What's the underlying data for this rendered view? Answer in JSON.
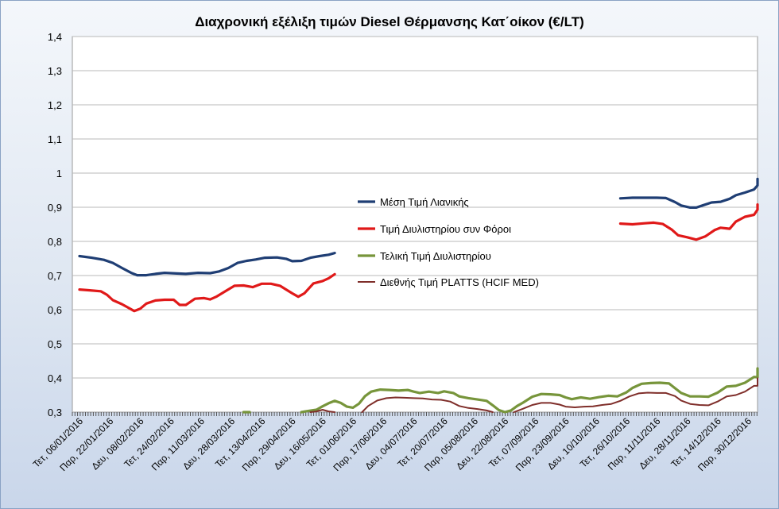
{
  "chart_data": {
    "type": "line",
    "title": "Διαχρονική εξέλιξη τιμών Diesel Θέρμανσης Κατ΄οίκον (€/LT)",
    "xlabel": "",
    "ylabel": "",
    "ylim": [
      0.3,
      1.4
    ],
    "yticks": [
      "0,3",
      "0,4",
      "0,5",
      "0,6",
      "0,7",
      "0,8",
      "0,9",
      "1",
      "1,1",
      "1,2",
      "1,3",
      "1,4"
    ],
    "grid": true,
    "legend_position": "center",
    "xtick_labels": [
      "Τετ, 06/01/2016",
      "Παρ, 22/01/2016",
      "Δευ, 08/02/2016",
      "Τετ, 24/02/2016",
      "Παρ, 11/03/2016",
      "Δευ, 28/03/2016",
      "Τετ, 13/04/2016",
      "Παρ, 29/04/2016",
      "Δευ, 16/05/2016",
      "Τετ, 01/06/2016",
      "Παρ, 17/06/2016",
      "Δευ, 04/07/2016",
      "Τετ, 20/07/2016",
      "Παρ, 05/08/2016",
      "Δευ, 22/08/2016",
      "Τετ, 07/09/2016",
      "Παρ, 23/09/2016",
      "Δευ, 10/10/2016",
      "Τετ, 26/10/2016",
      "Παρ, 11/11/2016",
      "Δευ, 28/11/2016",
      "Τετ, 14/12/2016",
      "Παρ, 30/12/2016"
    ],
    "x_index_range": [
      0,
      22
    ],
    "series": [
      {
        "name": "Μέση Τιμή Λιανικής",
        "color": "#1f3e74",
        "segments": [
          [
            [
              0,
              0.757
            ],
            [
              0.4,
              0.752
            ],
            [
              0.8,
              0.746
            ],
            [
              1.1,
              0.737
            ],
            [
              1.4,
              0.722
            ],
            [
              1.7,
              0.708
            ],
            [
              1.9,
              0.701
            ],
            [
              2.2,
              0.701
            ],
            [
              2.5,
              0.705
            ],
            [
              2.8,
              0.708
            ],
            [
              3.2,
              0.706
            ],
            [
              3.5,
              0.705
            ],
            [
              3.9,
              0.708
            ],
            [
              4.3,
              0.707
            ],
            [
              4.6,
              0.712
            ],
            [
              4.9,
              0.722
            ],
            [
              5.2,
              0.737
            ],
            [
              5.5,
              0.743
            ],
            [
              5.8,
              0.747
            ],
            [
              6.1,
              0.752
            ],
            [
              6.5,
              0.753
            ],
            [
              6.8,
              0.749
            ],
            [
              7.0,
              0.742
            ],
            [
              7.3,
              0.743
            ],
            [
              7.6,
              0.752
            ],
            [
              7.9,
              0.757
            ],
            [
              8.2,
              0.761
            ],
            [
              8.4,
              0.766
            ]
          ],
          [
            [
              17.8,
              0.926
            ],
            [
              18.2,
              0.928
            ],
            [
              18.6,
              0.928
            ],
            [
              19.0,
              0.928
            ],
            [
              19.3,
              0.927
            ],
            [
              19.6,
              0.915
            ],
            [
              19.8,
              0.905
            ],
            [
              20.1,
              0.899
            ],
            [
              20.3,
              0.899
            ],
            [
              20.5,
              0.905
            ],
            [
              20.8,
              0.914
            ],
            [
              21.1,
              0.916
            ],
            [
              21.4,
              0.925
            ],
            [
              21.6,
              0.935
            ],
            [
              21.9,
              0.943
            ],
            [
              22.2,
              0.952
            ],
            [
              22.5,
              0.964
            ],
            [
              22.8,
              0.972
            ],
            [
              23.1,
              0.977
            ],
            [
              23.4,
              0.983
            ]
          ]
        ]
      },
      {
        "name": "Τιμή Διυλιστηρίου συν Φόροι",
        "color": "#e01919",
        "segments": [
          [
            [
              0,
              0.659
            ],
            [
              0.3,
              0.657
            ],
            [
              0.7,
              0.654
            ],
            [
              0.9,
              0.644
            ],
            [
              1.1,
              0.628
            ],
            [
              1.4,
              0.616
            ],
            [
              1.6,
              0.606
            ],
            [
              1.8,
              0.596
            ],
            [
              2.0,
              0.603
            ],
            [
              2.2,
              0.618
            ],
            [
              2.5,
              0.627
            ],
            [
              2.8,
              0.629
            ],
            [
              3.1,
              0.629
            ],
            [
              3.3,
              0.614
            ],
            [
              3.5,
              0.614
            ],
            [
              3.8,
              0.632
            ],
            [
              4.1,
              0.634
            ],
            [
              4.3,
              0.63
            ],
            [
              4.5,
              0.638
            ],
            [
              4.8,
              0.654
            ],
            [
              5.1,
              0.67
            ],
            [
              5.4,
              0.671
            ],
            [
              5.7,
              0.666
            ],
            [
              6.0,
              0.676
            ],
            [
              6.3,
              0.676
            ],
            [
              6.6,
              0.67
            ],
            [
              6.8,
              0.659
            ],
            [
              7.0,
              0.648
            ],
            [
              7.2,
              0.638
            ],
            [
              7.4,
              0.648
            ],
            [
              7.7,
              0.677
            ],
            [
              8.0,
              0.684
            ],
            [
              8.2,
              0.692
            ],
            [
              8.4,
              0.704
            ]
          ],
          [
            [
              17.8,
              0.852
            ],
            [
              18.2,
              0.85
            ],
            [
              18.6,
              0.853
            ],
            [
              18.9,
              0.855
            ],
            [
              19.2,
              0.851
            ],
            [
              19.5,
              0.834
            ],
            [
              19.7,
              0.818
            ],
            [
              20.0,
              0.812
            ],
            [
              20.3,
              0.805
            ],
            [
              20.6,
              0.815
            ],
            [
              20.9,
              0.833
            ],
            [
              21.1,
              0.84
            ],
            [
              21.4,
              0.837
            ],
            [
              21.6,
              0.858
            ],
            [
              21.9,
              0.872
            ],
            [
              22.2,
              0.878
            ],
            [
              22.5,
              0.893
            ],
            [
              22.8,
              0.899
            ],
            [
              23.1,
              0.903
            ],
            [
              23.4,
              0.908
            ]
          ]
        ]
      },
      {
        "name": "Τελική Τιμή Διυλιστηρίου",
        "color": "#77953b",
        "segments": [
          [
            [
              5.4,
              0.298
            ],
            [
              5.5,
              0.3
            ],
            [
              5.6,
              0.298
            ]
          ],
          [
            [
              7.3,
              0.298
            ],
            [
              7.5,
              0.303
            ],
            [
              7.8,
              0.307
            ],
            [
              8.0,
              0.317
            ],
            [
              8.2,
              0.326
            ],
            [
              8.4,
              0.333
            ],
            [
              8.6,
              0.327
            ],
            [
              8.8,
              0.316
            ],
            [
              9.0,
              0.313
            ],
            [
              9.2,
              0.325
            ],
            [
              9.4,
              0.347
            ],
            [
              9.6,
              0.36
            ],
            [
              9.9,
              0.366
            ],
            [
              10.2,
              0.365
            ],
            [
              10.5,
              0.363
            ],
            [
              10.8,
              0.365
            ],
            [
              11.0,
              0.36
            ],
            [
              11.2,
              0.356
            ],
            [
              11.5,
              0.36
            ],
            [
              11.8,
              0.356
            ],
            [
              12.0,
              0.361
            ],
            [
              12.3,
              0.356
            ],
            [
              12.5,
              0.346
            ],
            [
              12.8,
              0.341
            ],
            [
              13.1,
              0.337
            ],
            [
              13.4,
              0.333
            ],
            [
              13.6,
              0.32
            ],
            [
              13.8,
              0.306
            ],
            [
              14.0,
              0.3
            ],
            [
              14.2,
              0.305
            ],
            [
              14.4,
              0.318
            ],
            [
              14.6,
              0.328
            ],
            [
              14.9,
              0.345
            ],
            [
              15.2,
              0.353
            ],
            [
              15.5,
              0.352
            ],
            [
              15.8,
              0.35
            ],
            [
              16.0,
              0.343
            ],
            [
              16.2,
              0.338
            ],
            [
              16.5,
              0.343
            ],
            [
              16.8,
              0.339
            ],
            [
              17.1,
              0.344
            ],
            [
              17.4,
              0.348
            ],
            [
              17.7,
              0.346
            ],
            [
              18.0,
              0.358
            ],
            [
              18.2,
              0.371
            ],
            [
              18.5,
              0.383
            ],
            [
              18.8,
              0.385
            ],
            [
              19.1,
              0.386
            ],
            [
              19.4,
              0.384
            ],
            [
              19.6,
              0.37
            ],
            [
              19.8,
              0.356
            ],
            [
              20.1,
              0.346
            ],
            [
              20.4,
              0.346
            ],
            [
              20.7,
              0.345
            ],
            [
              21.0,
              0.357
            ],
            [
              21.3,
              0.375
            ],
            [
              21.6,
              0.377
            ],
            [
              21.9,
              0.386
            ],
            [
              22.2,
              0.403
            ],
            [
              22.5,
              0.402
            ],
            [
              22.7,
              0.416
            ],
            [
              23.0,
              0.418
            ],
            [
              23.2,
              0.428
            ],
            [
              23.4,
              0.427
            ]
          ]
        ]
      },
      {
        "name": "Διεθνής Τιμή PLATTS (HCIF MED)",
        "color": "#7f2e2a",
        "segments": [
          [
            [
              7.6,
              0.298
            ],
            [
              7.8,
              0.302
            ],
            [
              8.0,
              0.307
            ],
            [
              8.2,
              0.302
            ],
            [
              8.4,
              0.299
            ]
          ],
          [
            [
              9.3,
              0.299
            ],
            [
              9.5,
              0.318
            ],
            [
              9.8,
              0.334
            ],
            [
              10.1,
              0.341
            ],
            [
              10.4,
              0.343
            ],
            [
              10.7,
              0.342
            ],
            [
              11.0,
              0.341
            ],
            [
              11.3,
              0.34
            ],
            [
              11.6,
              0.337
            ],
            [
              11.9,
              0.336
            ],
            [
              12.2,
              0.331
            ],
            [
              12.5,
              0.318
            ],
            [
              12.8,
              0.312
            ],
            [
              13.1,
              0.309
            ],
            [
              13.4,
              0.305
            ],
            [
              13.6,
              0.3
            ]
          ],
          [
            [
              14.3,
              0.3
            ],
            [
              14.6,
              0.31
            ],
            [
              14.9,
              0.321
            ],
            [
              15.2,
              0.327
            ],
            [
              15.5,
              0.327
            ],
            [
              15.8,
              0.322
            ],
            [
              16.0,
              0.316
            ],
            [
              16.3,
              0.314
            ],
            [
              16.6,
              0.316
            ],
            [
              16.9,
              0.317
            ],
            [
              17.2,
              0.321
            ],
            [
              17.5,
              0.324
            ],
            [
              17.8,
              0.333
            ],
            [
              18.1,
              0.346
            ],
            [
              18.4,
              0.355
            ],
            [
              18.7,
              0.357
            ],
            [
              19.0,
              0.356
            ],
            [
              19.3,
              0.356
            ],
            [
              19.6,
              0.347
            ],
            [
              19.8,
              0.334
            ],
            [
              20.1,
              0.324
            ],
            [
              20.4,
              0.321
            ],
            [
              20.7,
              0.32
            ],
            [
              21.0,
              0.331
            ],
            [
              21.3,
              0.346
            ],
            [
              21.6,
              0.35
            ],
            [
              21.9,
              0.36
            ],
            [
              22.2,
              0.377
            ],
            [
              22.5,
              0.377
            ],
            [
              22.8,
              0.389
            ],
            [
              23.1,
              0.398
            ],
            [
              23.4,
              0.399
            ]
          ]
        ]
      }
    ]
  }
}
